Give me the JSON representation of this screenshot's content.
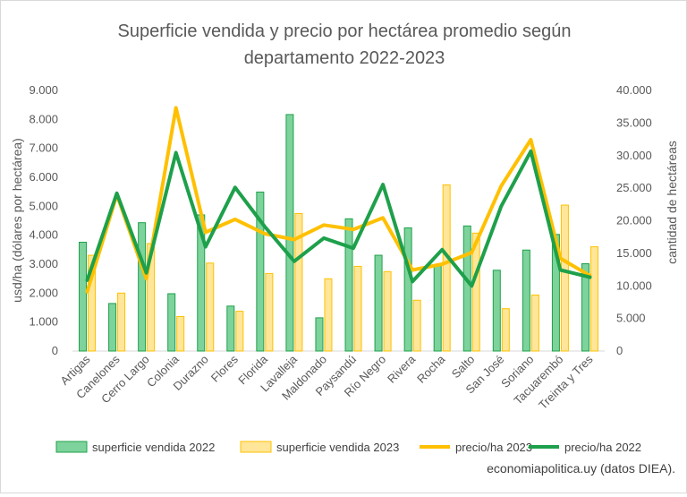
{
  "chart_data": {
    "type": "bar",
    "title_line1": "Superficie vendida y precio por hectárea promedio según",
    "title_line2": "departamento 2022-2023",
    "ylabel_left": "usd/ha (dólares por hectárea)",
    "ylabel_right": "cantidad de hectáreas",
    "ylim_left": [
      0,
      9000
    ],
    "ylim_right": [
      0,
      40000
    ],
    "yticks_left": [
      "0",
      "1.000",
      "2.000",
      "3.000",
      "4.000",
      "5.000",
      "6.000",
      "7.000",
      "8.000",
      "9.000"
    ],
    "yticks_right": [
      "0",
      "5.000",
      "10.000",
      "15.000",
      "20.000",
      "25.000",
      "30.000",
      "35.000",
      "40.000"
    ],
    "grid": false,
    "legend_position": "bottom",
    "categories": [
      "Artigas",
      "Canelones",
      "Cerro Largo",
      "Colonia",
      "Durazno",
      "Flores",
      "Florida",
      "Lavalleja",
      "Maldonado",
      "Paysandú",
      "Río Negro",
      "Rivera",
      "Rocha",
      "Salto",
      "San José",
      "Soriano",
      "Tacuarembó",
      "Treinta y Tres"
    ],
    "series": [
      {
        "name": "superficie vendida 2022",
        "kind": "bar",
        "axis": "right",
        "color": "#7dd39b",
        "stroke": "#1ea04b",
        "values": [
          16700,
          7300,
          19700,
          8800,
          20900,
          6900,
          24400,
          36300,
          5100,
          20300,
          14700,
          18900,
          13100,
          19200,
          12400,
          15500,
          17900,
          13400
        ]
      },
      {
        "name": "superficie vendida 2023",
        "kind": "bar",
        "axis": "right",
        "color": "#ffe699",
        "stroke": "#ffc000",
        "values": [
          14700,
          8900,
          16500,
          5300,
          13500,
          6100,
          11900,
          21100,
          11100,
          13000,
          12200,
          7800,
          25500,
          18100,
          6500,
          8600,
          22400,
          16000
        ]
      },
      {
        "name": "precio/ha 2023",
        "kind": "line",
        "axis": "left",
        "color": "#ffc000",
        "values": [
          2050,
          5400,
          2500,
          8400,
          4100,
          4550,
          4050,
          3850,
          4350,
          4200,
          4600,
          2800,
          3000,
          3400,
          5700,
          7300,
          3200,
          2600
        ]
      },
      {
        "name": "precio/ha 2022",
        "kind": "line",
        "axis": "left",
        "color": "#1ea04b",
        "values": [
          2450,
          5450,
          2700,
          6850,
          3600,
          5650,
          4300,
          3100,
          3900,
          3550,
          5750,
          2400,
          3500,
          2250,
          5000,
          6900,
          2800,
          2550
        ]
      }
    ]
  },
  "source_text": "economiapolitica.uy (datos DIEA)."
}
